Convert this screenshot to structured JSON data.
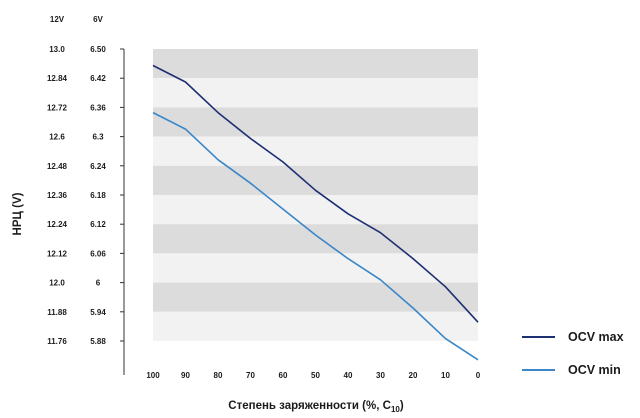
{
  "chart_data": {
    "type": "line",
    "x": [
      100,
      90,
      80,
      70,
      60,
      50,
      40,
      30,
      20,
      10,
      0
    ],
    "xlim": [
      100,
      0
    ],
    "x_ticks": [
      "100",
      "90",
      "80",
      "70",
      "60",
      "50",
      "40",
      "30",
      "20",
      "10",
      "0"
    ],
    "xlabel": {
      "main": "Степень заряженности (%, C",
      "sub": "10",
      "tail": ")"
    },
    "ylabel": "НРЦ (V)",
    "y_headers": {
      "v12": "12V",
      "v6": "6V"
    },
    "ylim_12v": [
      11.76,
      13.0
    ],
    "y_ticks_12v": [
      "13.0",
      "12.84",
      "12.72",
      "12.6",
      "12.48",
      "12.36",
      "12.24",
      "12.12",
      "12.0",
      "11.88",
      "11.76"
    ],
    "y_ticks_6v": [
      "6.50",
      "6.42",
      "6.36",
      "6.3",
      "6.24",
      "6.18",
      "6.12",
      "6.06",
      "6",
      "5.94",
      "5.88"
    ],
    "series": [
      {
        "name": "OCV max",
        "color": "#1d2f73",
        "values": [
          12.93,
          12.86,
          12.73,
          12.62,
          12.52,
          12.4,
          12.3,
          12.22,
          12.11,
          11.99,
          11.84
        ]
      },
      {
        "name": "OCV min",
        "color": "#3a86c8",
        "values": [
          12.73,
          12.66,
          12.53,
          12.43,
          12.32,
          12.21,
          12.11,
          12.02,
          11.9,
          11.77,
          11.68
        ]
      }
    ],
    "grid": "alternating horizontal bands",
    "legend": "bottom-right"
  }
}
